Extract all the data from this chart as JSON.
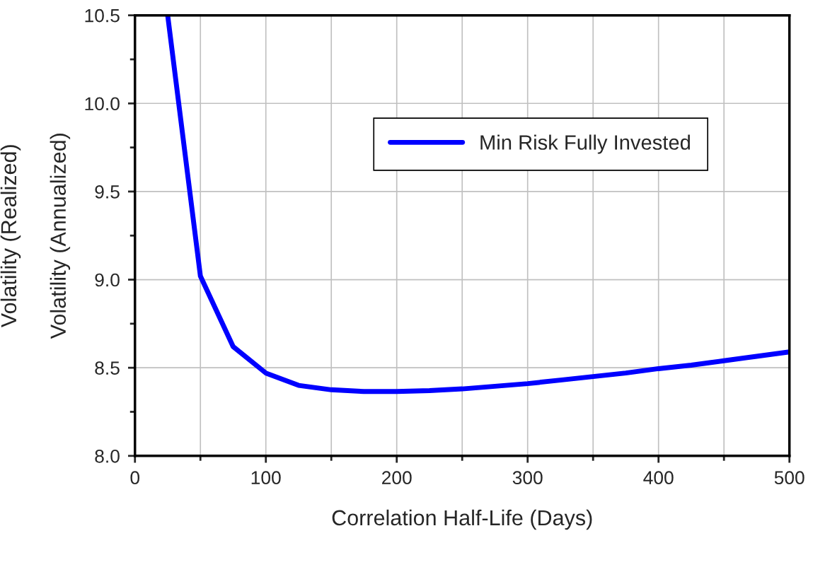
{
  "chart_data": {
    "type": "line",
    "xlabel": "Correlation Half-Life (Days)",
    "ylabel": "Volatility (Annualized)",
    "annotations": [
      "Volatility (Realized)"
    ],
    "x": [
      25,
      50,
      75,
      100,
      125,
      150,
      175,
      200,
      225,
      250,
      275,
      300,
      325,
      350,
      375,
      400,
      425,
      450,
      475,
      500
    ],
    "series": [
      {
        "name": "Min Risk Fully Invested",
        "color": "#0000ff",
        "values": [
          10.5,
          9.02,
          8.62,
          8.47,
          8.4,
          8.375,
          8.365,
          8.365,
          8.37,
          8.38,
          8.395,
          8.41,
          8.43,
          8.45,
          8.47,
          8.495,
          8.515,
          8.54,
          8.565,
          8.59
        ]
      }
    ],
    "xlim": [
      0,
      500
    ],
    "ylim": [
      8.0,
      10.5
    ],
    "xticks": [
      0,
      {
        "value": 50,
        "label": null
      },
      100,
      {
        "value": 150,
        "label": null
      },
      200,
      {
        "value": 250,
        "label": null
      },
      300,
      {
        "value": 350,
        "label": null
      },
      400,
      {
        "value": 450,
        "label": null
      },
      500
    ],
    "yticks": [
      {
        "value": 8.0,
        "label": "8.0"
      },
      {
        "value": 8.25,
        "label": null
      },
      8.5,
      {
        "value": 8.75,
        "label": null
      },
      {
        "value": 9.0,
        "label": "9.0"
      },
      {
        "value": 9.25,
        "label": null
      },
      9.5,
      {
        "value": 9.75,
        "label": null
      },
      {
        "value": 10.0,
        "label": "10.0"
      },
      {
        "value": 10.25,
        "label": null
      },
      10.5
    ],
    "grid": true,
    "legend": "top",
    "marker": "none",
    "line_style": "solid"
  }
}
